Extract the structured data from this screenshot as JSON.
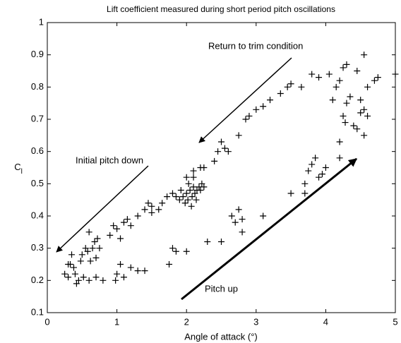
{
  "chart_data": {
    "type": "scatter",
    "title": "Lift coefficient measured during short period pitch oscillations",
    "xlabel": "Angle of attack (°)",
    "ylabel": "C",
    "ylabel_sub": "l",
    "xlim": [
      0,
      5
    ],
    "ylim": [
      0.1,
      1
    ],
    "xticks": [
      0,
      1,
      2,
      3,
      4,
      5
    ],
    "yticks": [
      0.1,
      0.2,
      0.3,
      0.4,
      0.5,
      0.6,
      0.7,
      0.8,
      0.9,
      1
    ],
    "color": "#000000",
    "annotations": [
      "Return to trim condition",
      "Initial pitch down",
      "Pitch up"
    ],
    "x": [
      0.25,
      0.3,
      0.33,
      0.35,
      0.38,
      0.4,
      0.42,
      0.45,
      0.48,
      0.5,
      0.52,
      0.55,
      0.58,
      0.6,
      0.62,
      0.65,
      0.68,
      0.7,
      0.75,
      0.8,
      0.6,
      0.72,
      0.3,
      0.9,
      0.95,
      1.0,
      1.05,
      1.1,
      1.15,
      1.2,
      1.3,
      1.5,
      1.6,
      1.65,
      1.72,
      1.8,
      1.85,
      1.5,
      1.4,
      1.45,
      0.98,
      1.0,
      1.05,
      1.1,
      1.2,
      1.3,
      1.4,
      0.7,
      1.75,
      1.8,
      1.85,
      2.0,
      2.3,
      2.5,
      2.65,
      2.7,
      2.75,
      2.8,
      2.8,
      3.1,
      3.5,
      3.7,
      3.8,
      3.75,
      3.9,
      4.0,
      3.7,
      3.85,
      3.95,
      1.9,
      1.95,
      2.0,
      2.02,
      2.05,
      2.08,
      2.1,
      2.12,
      2.15,
      2.18,
      2.2,
      2.22,
      1.92,
      1.98,
      2.03,
      2.07,
      2.14,
      2.25,
      2.0,
      2.1,
      2.2,
      2.25,
      2.1,
      2.45,
      2.5,
      2.55,
      2.4,
      2.6,
      2.75,
      2.85,
      2.9,
      3.0,
      3.1,
      3.2,
      3.35,
      3.45,
      3.5,
      3.65,
      3.8,
      3.9,
      4.05,
      4.15,
      4.2,
      4.25,
      4.3,
      4.35,
      4.4,
      4.45,
      4.5,
      4.55,
      4.5,
      4.45,
      4.55,
      4.6,
      4.7,
      4.75,
      5.0,
      4.2,
      4.25,
      4.28,
      4.55,
      4.6,
      4.3,
      4.2,
      4.1
    ],
    "values": [
      0.22,
      0.21,
      0.25,
      0.28,
      0.24,
      0.22,
      0.19,
      0.2,
      0.26,
      0.28,
      0.21,
      0.3,
      0.29,
      0.2,
      0.26,
      0.3,
      0.32,
      0.27,
      0.3,
      0.2,
      0.35,
      0.33,
      0.25,
      0.34,
      0.37,
      0.36,
      0.33,
      0.38,
      0.39,
      0.37,
      0.4,
      0.43,
      0.42,
      0.44,
      0.46,
      0.47,
      0.46,
      0.41,
      0.42,
      0.44,
      0.2,
      0.22,
      0.25,
      0.21,
      0.24,
      0.23,
      0.23,
      0.21,
      0.25,
      0.3,
      0.29,
      0.29,
      0.32,
      0.32,
      0.4,
      0.38,
      0.42,
      0.39,
      0.35,
      0.4,
      0.47,
      0.5,
      0.56,
      0.54,
      0.52,
      0.55,
      0.47,
      0.58,
      0.53,
      0.45,
      0.46,
      0.47,
      0.45,
      0.48,
      0.46,
      0.49,
      0.47,
      0.48,
      0.49,
      0.48,
      0.5,
      0.48,
      0.44,
      0.5,
      0.43,
      0.45,
      0.49,
      0.52,
      0.52,
      0.55,
      0.55,
      0.54,
      0.6,
      0.63,
      0.61,
      0.57,
      0.6,
      0.65,
      0.7,
      0.71,
      0.73,
      0.74,
      0.76,
      0.78,
      0.8,
      0.81,
      0.8,
      0.84,
      0.83,
      0.84,
      0.8,
      0.82,
      0.86,
      0.87,
      0.77,
      0.68,
      0.67,
      0.72,
      0.73,
      0.76,
      0.85,
      0.9,
      0.8,
      0.82,
      0.83,
      0.84,
      0.63,
      0.71,
      0.69,
      0.65,
      0.71,
      0.75,
      0.58,
      0.76
    ]
  }
}
